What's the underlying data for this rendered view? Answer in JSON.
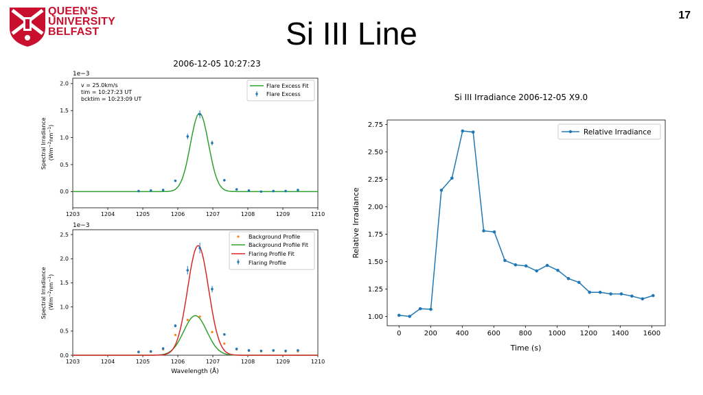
{
  "slide": {
    "title": "Si III Line",
    "number": "17",
    "logo_lines": [
      "QUEEN'S",
      "UNIVERSITY",
      "BELFAST"
    ],
    "logo_color": "#c8102e"
  },
  "chart_data": [
    {
      "type": "scatter",
      "title": "2006-12-05 10:27:23",
      "xlabel": "",
      "ylabel": "Spectral Irradiance\n(Wm^-2nm^-1)",
      "scale_label": "1e−3",
      "xlim": [
        1203,
        1210
      ],
      "ylim": [
        -0.3,
        2.1
      ],
      "xticks": [
        "1203",
        "1204",
        "1205",
        "1206",
        "1207",
        "1208",
        "1209",
        "1210"
      ],
      "yticks": [
        "0.0",
        "0.5",
        "1.0",
        "1.5",
        "2.0"
      ],
      "annotation": [
        "v = 25.0km/s",
        "tim =  10:27:23 UT",
        "bcktim =  10:23:09 UT"
      ],
      "legend_position": "top-right",
      "series": [
        {
          "name": "Flare Excess Fit",
          "kind": "line",
          "color": "#2ca02c",
          "curve": {
            "amplitude": 1.45,
            "center": 1206.62,
            "sigma": 0.26
          }
        },
        {
          "name": "Flare Excess",
          "kind": "errorbar",
          "color": "#1f77b4",
          "x": [
            1204.88,
            1205.23,
            1205.58,
            1205.93,
            1206.28,
            1206.63,
            1206.98,
            1207.33,
            1207.68,
            1208.03,
            1208.38,
            1208.73,
            1209.08,
            1209.43
          ],
          "y": [
            0.01,
            0.02,
            0.03,
            0.2,
            1.02,
            1.43,
            0.9,
            0.21,
            0.04,
            0.02,
            0.0,
            0.01,
            0.01,
            0.03
          ]
        }
      ]
    },
    {
      "type": "scatter",
      "title": "",
      "xlabel": "Wavelength (Å)",
      "ylabel": "Spectral Irradiance\n(Wm^-2nm^-1)",
      "scale_label": "1e−3",
      "xlim": [
        1203,
        1210
      ],
      "ylim": [
        0,
        2.6
      ],
      "xticks": [
        "1203",
        "1204",
        "1205",
        "1206",
        "1207",
        "1208",
        "1209",
        "1210"
      ],
      "yticks": [
        "0.0",
        "0.5",
        "1.0",
        "1.5",
        "2.0",
        "2.5"
      ],
      "legend_position": "top-right",
      "series": [
        {
          "name": "Background Profile",
          "kind": "points",
          "color": "#ff7f0e",
          "x": [
            1204.88,
            1205.23,
            1205.58,
            1205.93,
            1206.28,
            1206.63,
            1206.98,
            1207.33,
            1207.68,
            1208.03,
            1208.38,
            1208.73,
            1209.08,
            1209.43
          ],
          "y": [
            0.06,
            0.07,
            0.12,
            0.42,
            0.73,
            0.8,
            0.48,
            0.24,
            0.12,
            0.09,
            0.08,
            0.09,
            0.08,
            0.08
          ]
        },
        {
          "name": "Background Profile Fit",
          "kind": "line",
          "color": "#2ca02c",
          "curve": {
            "amplitude": 0.82,
            "center": 1206.5,
            "sigma": 0.33
          }
        },
        {
          "name": "Flaring Profile Fit",
          "kind": "line",
          "color": "#d62728",
          "curve": {
            "amplitude": 2.27,
            "center": 1206.58,
            "sigma": 0.3
          }
        },
        {
          "name": "Flaring Profile",
          "kind": "errorbar",
          "color": "#1f77b4",
          "x": [
            1204.88,
            1205.23,
            1205.58,
            1205.93,
            1206.28,
            1206.63,
            1206.98,
            1207.33,
            1207.68,
            1208.03,
            1208.38,
            1208.73,
            1209.08,
            1209.43
          ],
          "y": [
            0.07,
            0.08,
            0.14,
            0.61,
            1.76,
            2.22,
            1.37,
            0.43,
            0.13,
            0.1,
            0.09,
            0.1,
            0.09,
            0.1
          ]
        }
      ]
    },
    {
      "type": "line",
      "title": "Si III Irradiance 2006-12-05 X9.0",
      "xlabel": "Time (s)",
      "ylabel": "Relative Irradiance",
      "xlim": [
        -75,
        1685
      ],
      "ylim": [
        0.915,
        2.79
      ],
      "xticks": [
        "0",
        "200",
        "400",
        "600",
        "800",
        "1000",
        "1200",
        "1400",
        "1600"
      ],
      "yticks": [
        "1.00",
        "1.25",
        "1.50",
        "1.75",
        "2.00",
        "2.25",
        "2.50",
        "2.75"
      ],
      "legend_position": "top-right",
      "series": [
        {
          "name": "Relative Irradiance",
          "color": "#1f77b4",
          "x": [
            0,
            67,
            134,
            201,
            268,
            335,
            402,
            469,
            536,
            603,
            670,
            737,
            804,
            871,
            938,
            1005,
            1072,
            1139,
            1206,
            1273,
            1340,
            1407,
            1474,
            1541,
            1608
          ],
          "y": [
            1.01,
            1.0,
            1.07,
            1.065,
            2.15,
            2.26,
            2.69,
            2.68,
            1.78,
            1.77,
            1.51,
            1.47,
            1.46,
            1.415,
            1.465,
            1.42,
            1.345,
            1.31,
            1.22,
            1.22,
            1.205,
            1.205,
            1.185,
            1.16,
            1.19
          ]
        }
      ]
    }
  ]
}
